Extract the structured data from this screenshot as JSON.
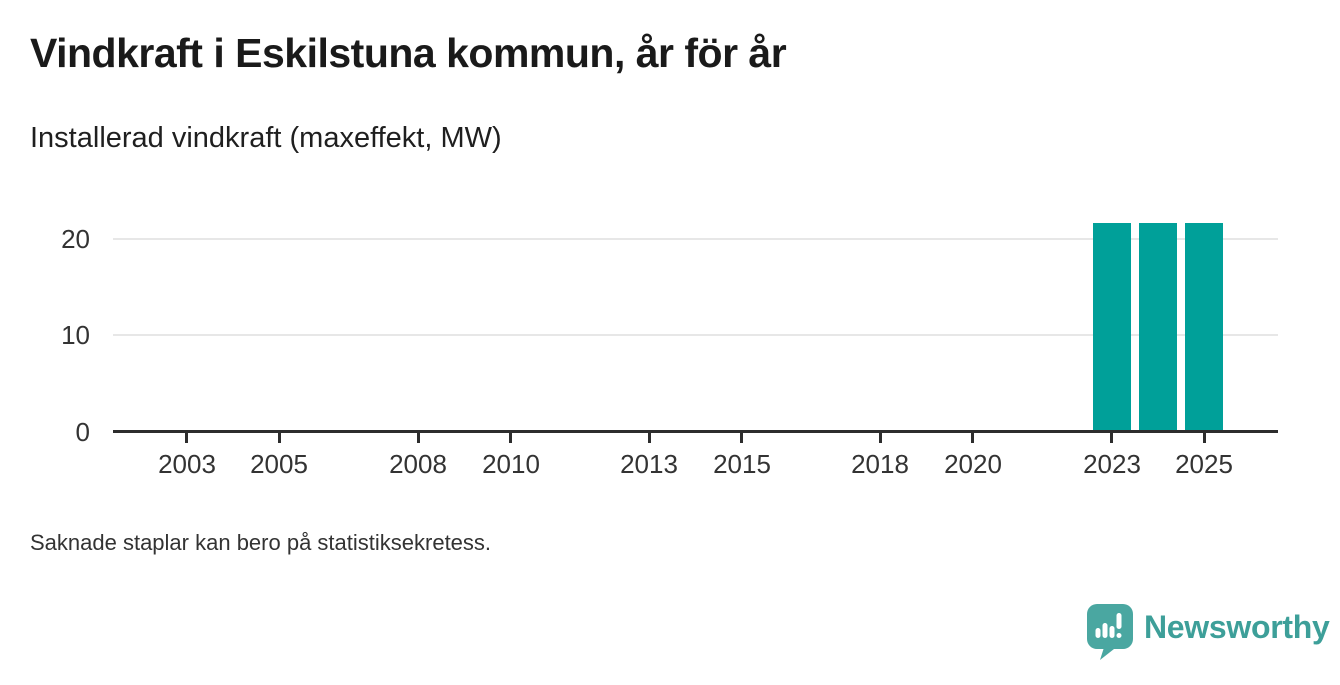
{
  "chart_data": {
    "type": "bar",
    "title": "Vindkraft i Eskilstuna kommun, år för år",
    "subtitle": "Installerad vindkraft (maxeffekt, MW)",
    "unit": "MW",
    "bars": [
      {
        "x": 2023,
        "value": 21.6
      },
      {
        "x": 2024,
        "value": 21.6
      },
      {
        "x": 2025,
        "value": 21.6
      }
    ],
    "bar_color": "#00a099",
    "bar_width_years": 0.82,
    "xlim": [
      2001.4,
      2026.6
    ],
    "ylim": [
      0,
      24
    ],
    "xticks": [
      2003,
      2005,
      2008,
      2010,
      2013,
      2015,
      2018,
      2020,
      2023,
      2025
    ],
    "yticks": [
      0,
      10,
      20
    ],
    "grid": "horizontal-only",
    "legend": "none",
    "note": "Bars shown only for 2023, 2024 and 2025; all other years have no bar"
  },
  "footnote": "Saknade staplar kan bero på statistiksekretess.",
  "branding": {
    "name": "Newsworthy",
    "icon": "newsworthy-speech-bubble-chart-icon",
    "icon_color": "#4aa7a1",
    "text_color": "#3d9f99"
  }
}
